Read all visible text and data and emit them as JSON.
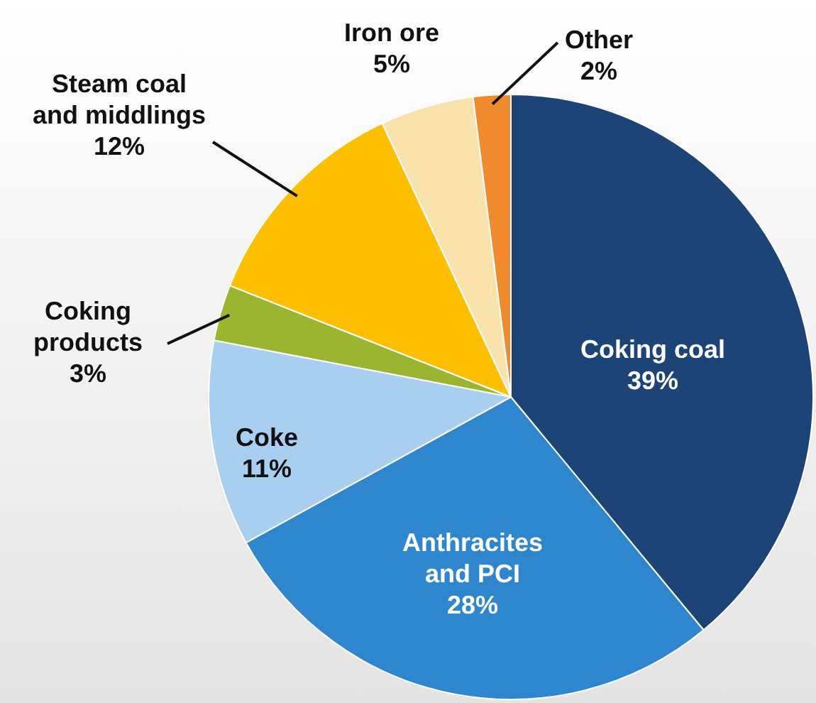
{
  "chart_data": {
    "type": "pie",
    "categories": [
      "Coking coal",
      "Anthracites and PCI",
      "Coke",
      "Coking products",
      "Steam coal and middlings",
      "Iron ore",
      "Other"
    ],
    "values": [
      39,
      28,
      11,
      3,
      12,
      5,
      2
    ],
    "colors": [
      "#1c4476",
      "#2e86cf",
      "#a9cff0",
      "#9bb530",
      "#fdbf00",
      "#f9e2ab",
      "#ef8a2d"
    ],
    "value_labels": [
      "39%",
      "28%",
      "11%",
      "3%",
      "12%",
      "5%",
      "2%"
    ],
    "legend": false
  }
}
